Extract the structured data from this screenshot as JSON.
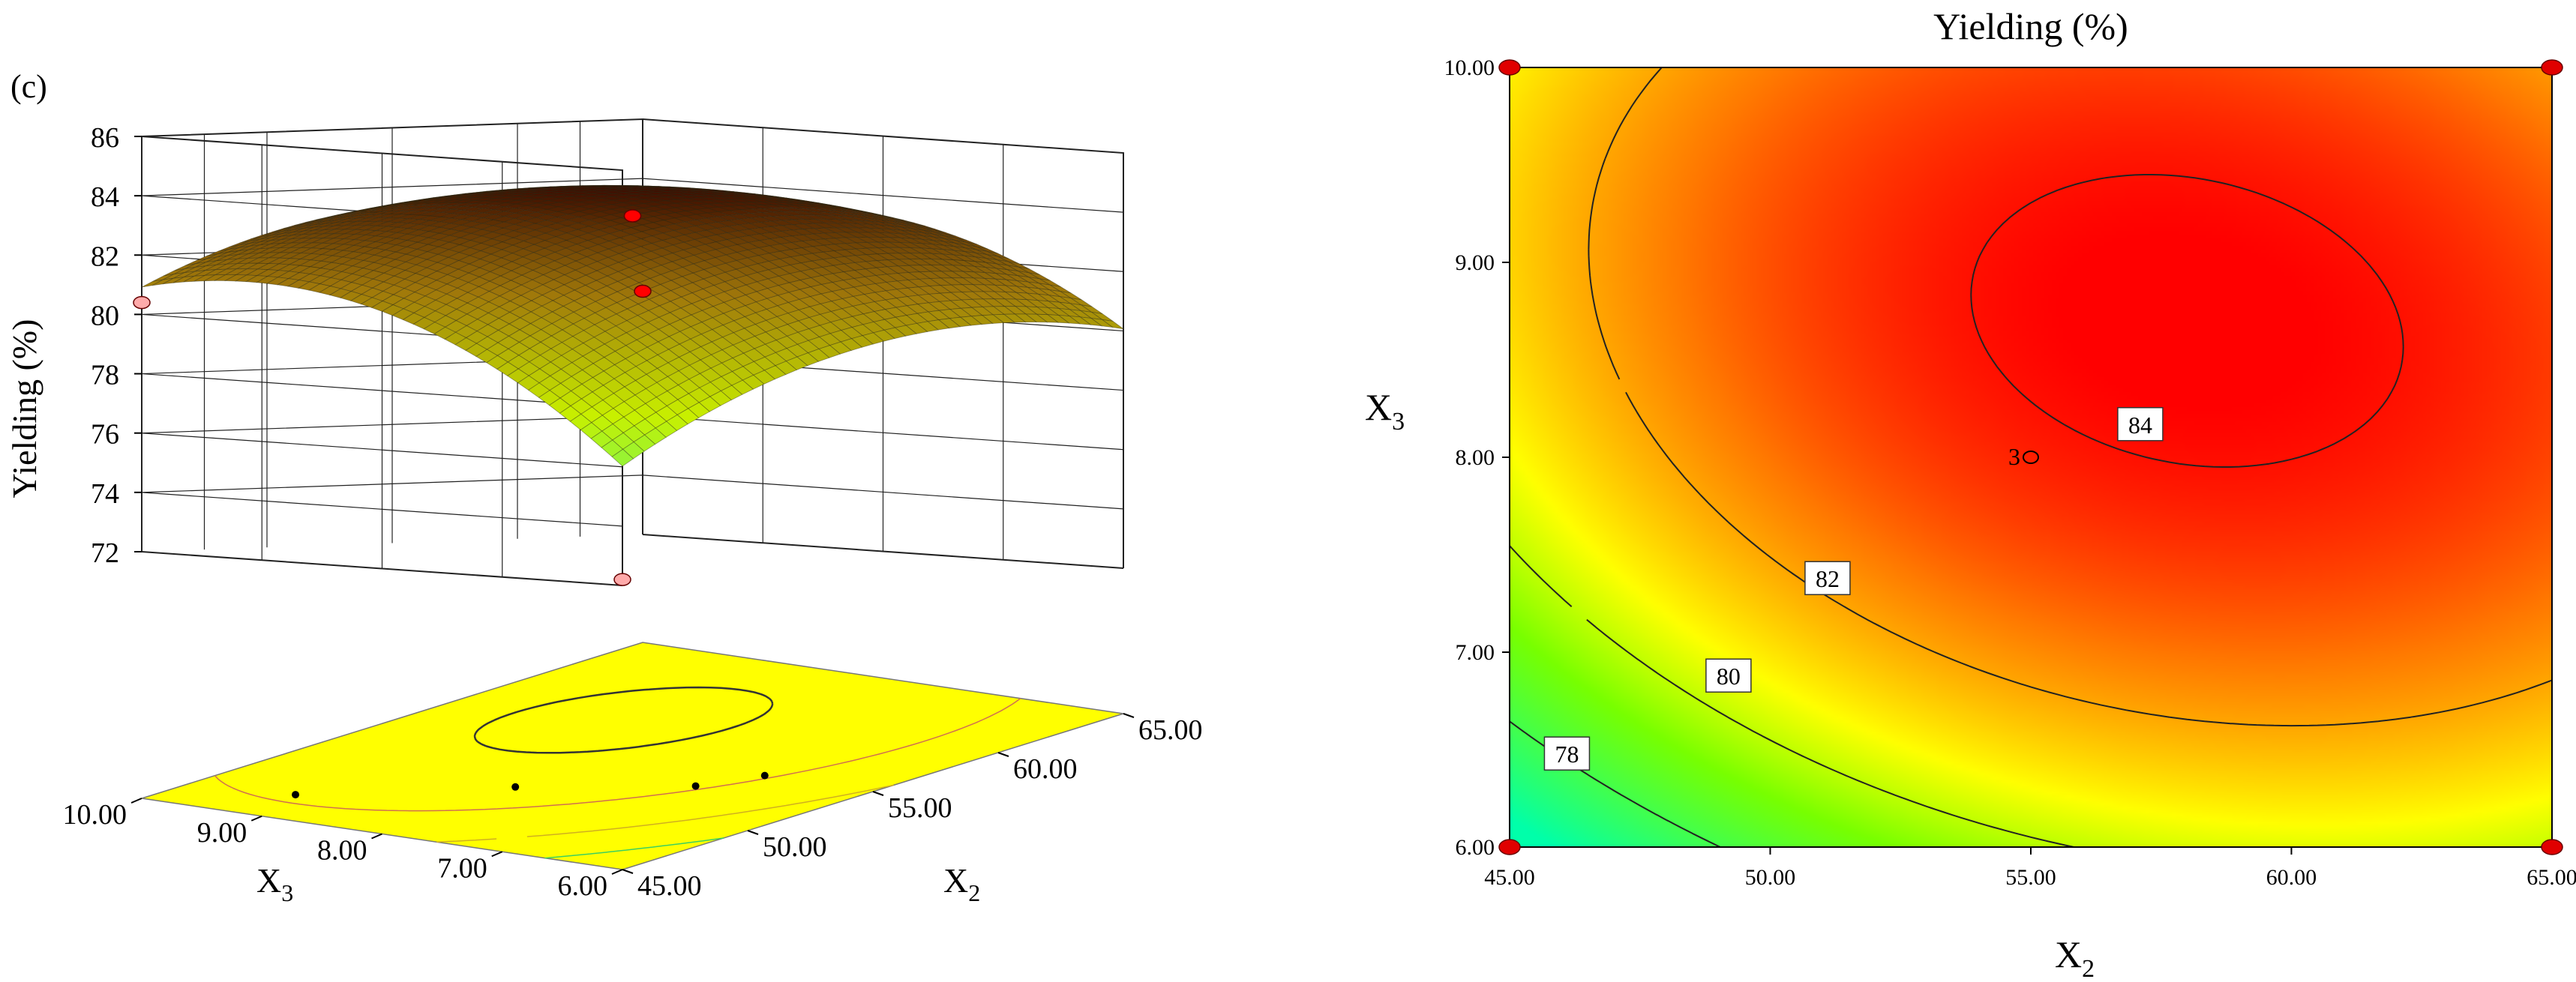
{
  "figure": {
    "panel_label": "(c)"
  },
  "chart_data": [
    {
      "type": "surface3d",
      "zlabel": "Yielding (%)",
      "xlabel_main": "X",
      "xlabel_sub": "2",
      "ylabel_main": "X",
      "ylabel_sub": "3",
      "x_ticks": [
        "45.00",
        "50.00",
        "55.00",
        "60.00",
        "65.00"
      ],
      "y_ticks": [
        "6.00",
        "7.00",
        "8.00",
        "9.00",
        "10.00"
      ],
      "z_ticks": [
        "72",
        "74",
        "76",
        "78",
        "80",
        "82",
        "84",
        "86"
      ],
      "xlim": [
        45,
        65
      ],
      "ylim": [
        6,
        10
      ],
      "zlim": [
        72,
        86
      ],
      "model": {
        "b0": 84.3,
        "x_center": 58.0,
        "y_center": 8.7,
        "ax": 0.018,
        "ay": 0.55,
        "cxy": 0.035
      },
      "design_points": [
        {
          "x": 55,
          "y": 8,
          "z": 83.6,
          "color": "#ff0000"
        },
        {
          "x": 65,
          "y": 10,
          "z": 80.2,
          "color": "#ff0000"
        },
        {
          "x": 45,
          "y": 10,
          "z": 80.4,
          "color": "#ffaaaa"
        },
        {
          "x": 45,
          "y": 6,
          "z": 72.2,
          "color": "#ffaaaa"
        }
      ],
      "colors": {
        "low": "#00ffd0",
        "mid": "#c8c800",
        "high": "#7a0000",
        "floor": "#ffff00"
      }
    },
    {
      "type": "contour",
      "title": "Yielding (%)",
      "xlabel_main": "X",
      "xlabel_sub": "2",
      "ylabel_main": "X",
      "ylabel_sub": "3",
      "x_ticks": [
        "45.00",
        "50.00",
        "55.00",
        "60.00",
        "65.00"
      ],
      "y_ticks": [
        "6.00",
        "7.00",
        "8.00",
        "9.00",
        "10.00"
      ],
      "xlim": [
        45,
        65
      ],
      "ylim": [
        6,
        10
      ],
      "contour_levels": [
        78,
        80,
        82,
        84
      ],
      "contour_labels": [
        "78",
        "80",
        "82",
        "84"
      ],
      "center_point_label": "3",
      "design_points": [
        {
          "x": 45,
          "y": 10
        },
        {
          "x": 65,
          "y": 10
        },
        {
          "x": 45,
          "y": 6
        },
        {
          "x": 65,
          "y": 6
        }
      ],
      "center_point": {
        "x": 55,
        "y": 8
      }
    }
  ]
}
